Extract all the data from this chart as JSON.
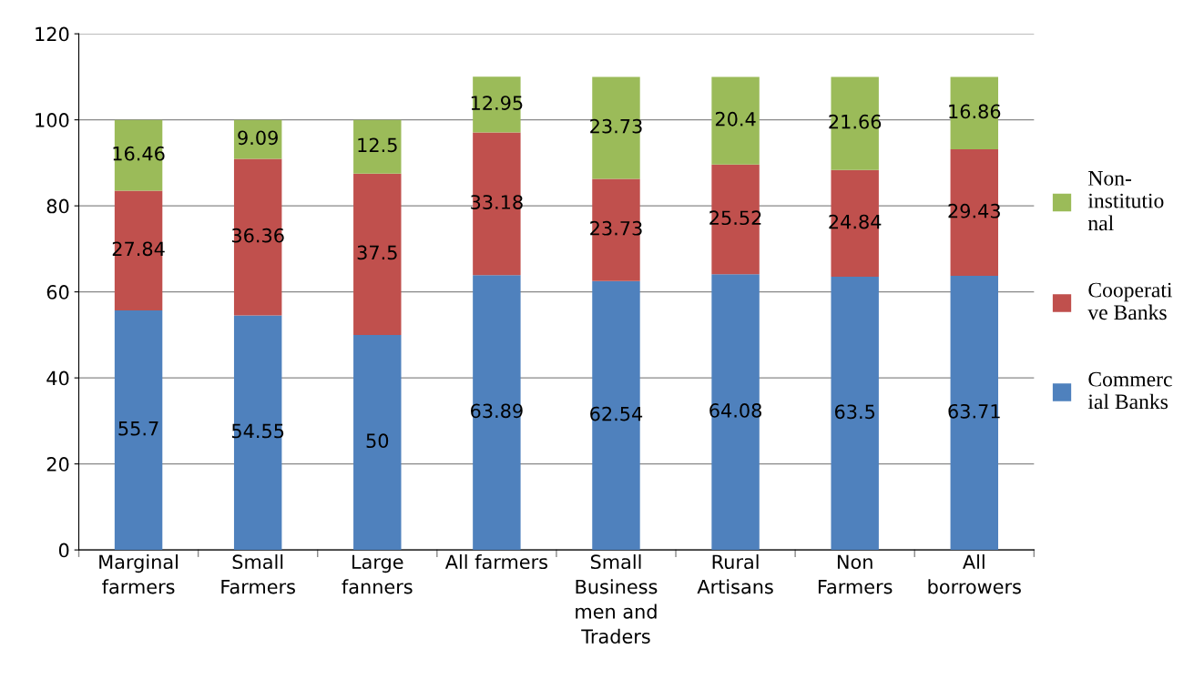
{
  "chart_data": {
    "type": "bar",
    "stacked": true,
    "categories": [
      "Marginal\nfarmers",
      "Small\nFarmers",
      "Large\nfanners",
      "All farmers",
      "Small\nBusiness\nmen and\nTraders",
      "Rural\nArtisans",
      "Non\nFarmers",
      "All\nborrowers"
    ],
    "series": [
      {
        "name": "Commerc\nial Banks",
        "color": "#4f81bd",
        "values": [
          55.7,
          54.55,
          50,
          63.89,
          62.54,
          64.08,
          63.5,
          63.71
        ]
      },
      {
        "name": "Cooperati\nve Banks",
        "color": "#c0504d",
        "values": [
          27.84,
          36.36,
          37.5,
          33.18,
          23.73,
          25.52,
          24.84,
          29.43
        ]
      },
      {
        "name": "Non-\ninstitutio\nnal",
        "color": "#9bbb59",
        "values": [
          16.46,
          9.09,
          12.5,
          12.95,
          23.73,
          20.4,
          21.66,
          16.86
        ]
      }
    ],
    "ylim": [
      0,
      120
    ],
    "yticks": [
      0,
      20,
      40,
      60,
      80,
      100,
      120
    ],
    "grid": "y",
    "legend": "right",
    "data_labels": true
  }
}
